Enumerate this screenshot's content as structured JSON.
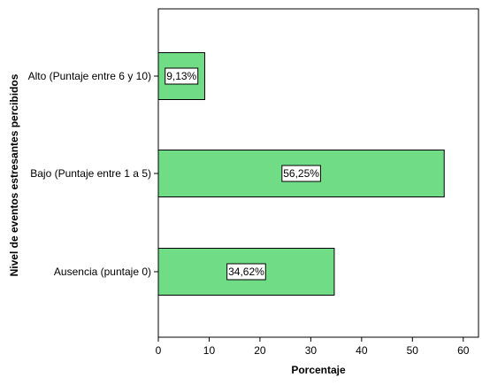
{
  "chart_data": {
    "type": "bar",
    "orientation": "horizontal",
    "categories": [
      "Alto (Puntaje entre 6 y 10)",
      "Bajo (Puntaje entre 1 a 5)",
      "Ausencia (puntaje 0)"
    ],
    "values": [
      9.13,
      56.25,
      34.62
    ],
    "data_labels": [
      "9,13%",
      "56,25%",
      "34,62%"
    ],
    "xlabel": "Porcentaje",
    "ylabel": "Nivel de eventos estresantes percibidos",
    "xlim": [
      0,
      63
    ],
    "x_ticks": [
      0,
      10,
      20,
      30,
      40,
      50,
      60
    ],
    "grid": false,
    "legend": "none",
    "bar_color": "#70dc86",
    "bar_edge_color": "#000000"
  }
}
